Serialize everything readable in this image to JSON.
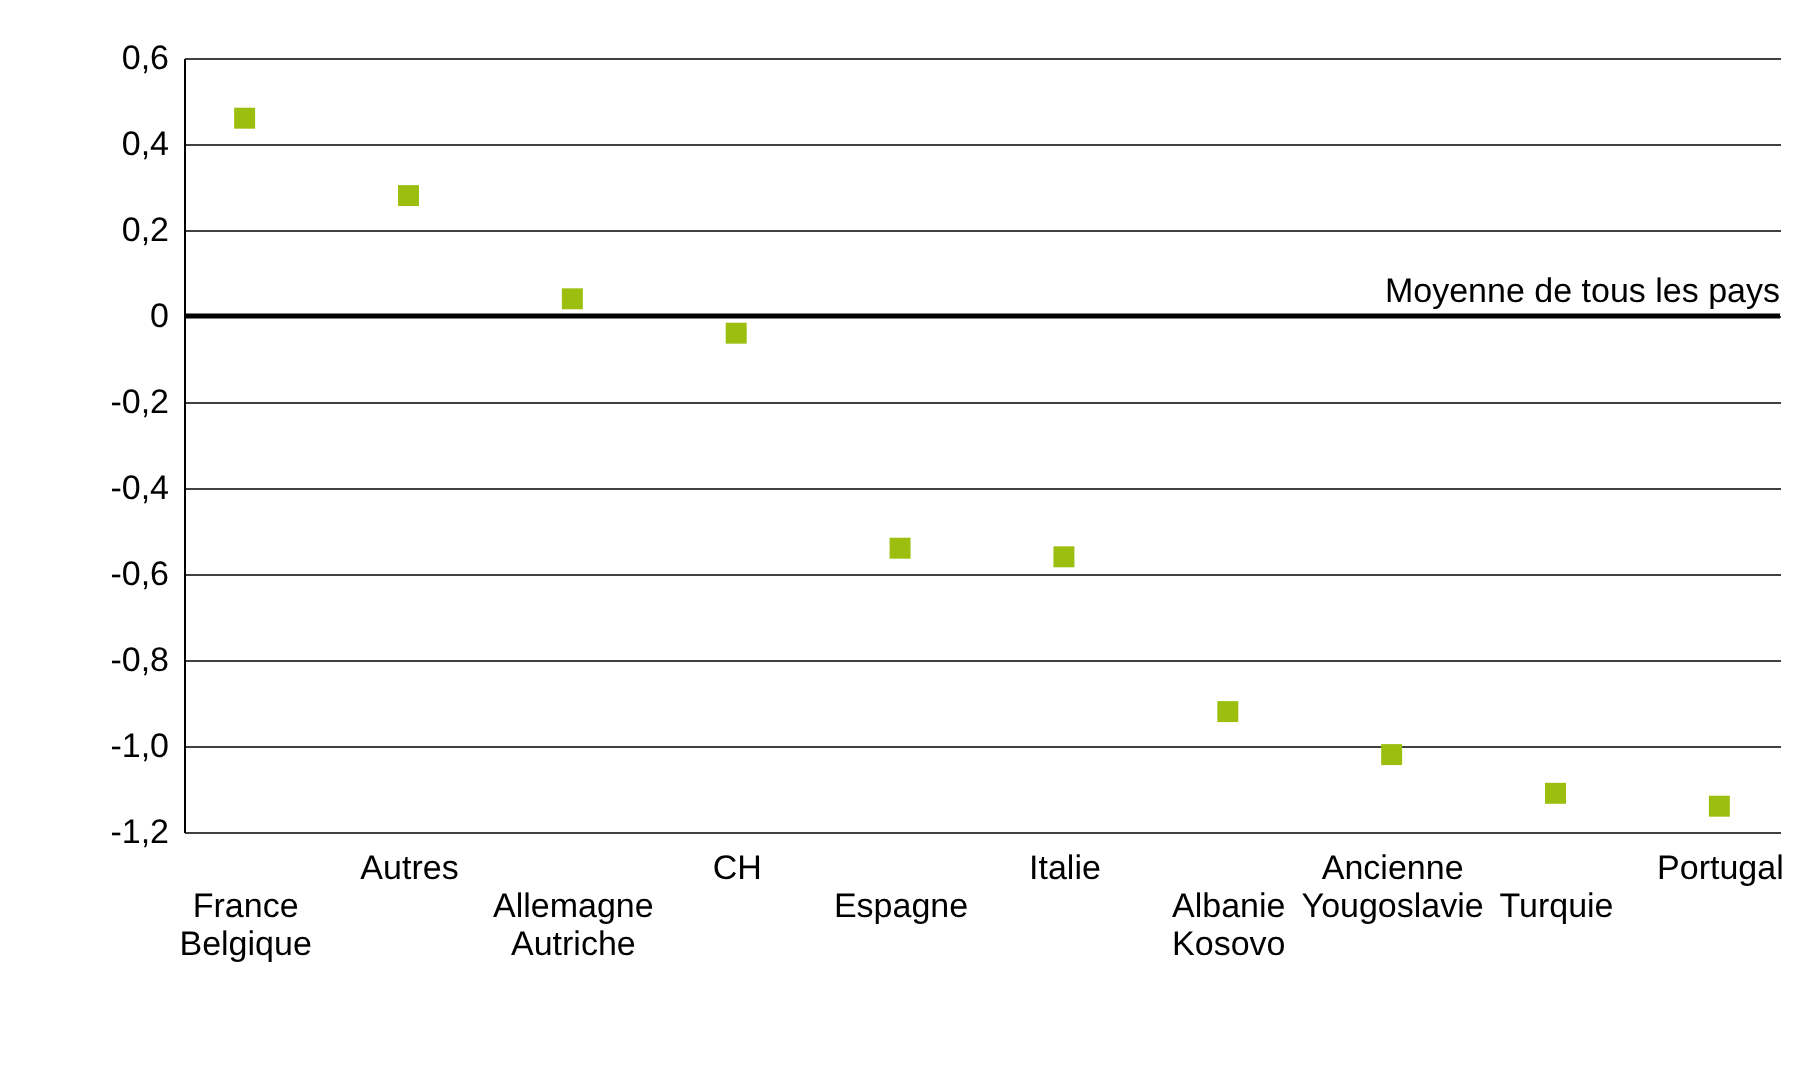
{
  "chart_data": {
    "type": "scatter",
    "categories": [
      "France Belgique",
      "Autres",
      "Allemagne Autriche",
      "CH",
      "Espagne",
      "Italie",
      "Albanie Kosovo",
      "Ancienne Yougoslavie",
      "Turquie",
      "Portugal"
    ],
    "series": [
      {
        "color": "#9cbf0f",
        "values": [
          0.46,
          0.28,
          0.04,
          -0.04,
          -0.54,
          -0.56,
          -0.92,
          -1.02,
          -1.11,
          -1.14
        ]
      }
    ],
    "ylim": [
      -1.2,
      0.6
    ],
    "yticks": [
      {
        "value": -1.2,
        "label": "-1,2"
      },
      {
        "value": -1.0,
        "label": "-1,0"
      },
      {
        "value": -0.8,
        "label": "-0,8"
      },
      {
        "value": -0.6,
        "label": "-0,6"
      },
      {
        "value": -0.4,
        "label": "-0,4"
      },
      {
        "value": -0.2,
        "label": "-0,2"
      },
      {
        "value": 0,
        "label": "0"
      },
      {
        "value": 0.2,
        "label": "0,2"
      },
      {
        "value": 0.4,
        "label": "0,4"
      },
      {
        "value": 0.6,
        "label": "0,6"
      }
    ],
    "grid": "y",
    "marker": "square",
    "ref_lines": [
      {
        "axis": "y",
        "value": 0,
        "label": "Moyenne de tous les pays",
        "color": "#000000"
      }
    ]
  }
}
